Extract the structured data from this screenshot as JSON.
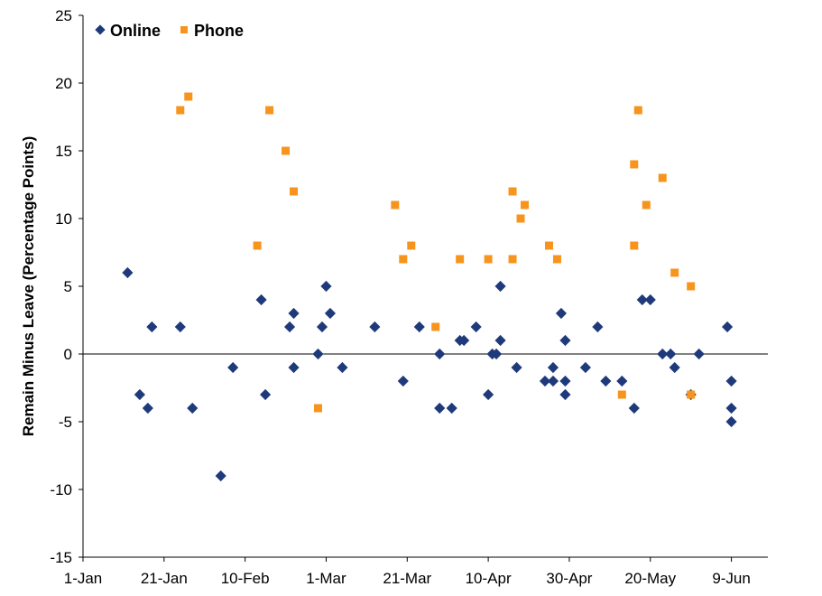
{
  "chart_data": {
    "type": "scatter",
    "ylabel": "Remain Minus Leave (Percentage Points)",
    "xlabel": "",
    "ylim": [
      -15,
      25
    ],
    "yticks": [
      -15,
      -10,
      -5,
      0,
      5,
      10,
      15,
      20,
      25
    ],
    "xlim": [
      "2016-01-01",
      "2016-06-18"
    ],
    "xticks": [
      {
        "date": "2016-01-01",
        "label": "1-Jan"
      },
      {
        "date": "2016-01-21",
        "label": "21-Jan"
      },
      {
        "date": "2016-02-10",
        "label": "10-Feb"
      },
      {
        "date": "2016-03-01",
        "label": "1-Mar"
      },
      {
        "date": "2016-03-21",
        "label": "21-Mar"
      },
      {
        "date": "2016-04-10",
        "label": "10-Apr"
      },
      {
        "date": "2016-04-30",
        "label": "30-Apr"
      },
      {
        "date": "2016-05-20",
        "label": "20-May"
      },
      {
        "date": "2016-06-09",
        "label": "9-Jun"
      }
    ],
    "grid": false,
    "legend_position": "top-left",
    "series": [
      {
        "name": "Online",
        "color": "#1F3A7A",
        "marker": "diamond",
        "points": [
          {
            "x": "2016-01-12",
            "y": 6
          },
          {
            "x": "2016-01-15",
            "y": -3
          },
          {
            "x": "2016-01-17",
            "y": -4
          },
          {
            "x": "2016-01-18",
            "y": 2
          },
          {
            "x": "2016-01-25",
            "y": 2
          },
          {
            "x": "2016-01-28",
            "y": -4
          },
          {
            "x": "2016-02-04",
            "y": -9
          },
          {
            "x": "2016-02-07",
            "y": -1
          },
          {
            "x": "2016-02-14",
            "y": 4
          },
          {
            "x": "2016-02-15",
            "y": -3
          },
          {
            "x": "2016-02-21",
            "y": 2
          },
          {
            "x": "2016-02-22",
            "y": 3
          },
          {
            "x": "2016-02-22",
            "y": -1
          },
          {
            "x": "2016-02-28",
            "y": 0
          },
          {
            "x": "2016-02-29",
            "y": 2
          },
          {
            "x": "2016-03-01",
            "y": 5
          },
          {
            "x": "2016-03-02",
            "y": 3
          },
          {
            "x": "2016-03-05",
            "y": -1
          },
          {
            "x": "2016-03-13",
            "y": 2
          },
          {
            "x": "2016-03-20",
            "y": -2
          },
          {
            "x": "2016-03-24",
            "y": 2
          },
          {
            "x": "2016-03-29",
            "y": 0
          },
          {
            "x": "2016-03-29",
            "y": -4
          },
          {
            "x": "2016-04-01",
            "y": -4
          },
          {
            "x": "2016-04-03",
            "y": 1
          },
          {
            "x": "2016-04-04",
            "y": 1
          },
          {
            "x": "2016-04-07",
            "y": 2
          },
          {
            "x": "2016-04-10",
            "y": -3
          },
          {
            "x": "2016-04-11",
            "y": 0
          },
          {
            "x": "2016-04-12",
            "y": 0
          },
          {
            "x": "2016-04-13",
            "y": 5
          },
          {
            "x": "2016-04-13",
            "y": 1
          },
          {
            "x": "2016-04-17",
            "y": -1
          },
          {
            "x": "2016-04-24",
            "y": -2
          },
          {
            "x": "2016-04-26",
            "y": -2
          },
          {
            "x": "2016-04-26",
            "y": -1
          },
          {
            "x": "2016-04-28",
            "y": 3
          },
          {
            "x": "2016-04-29",
            "y": 1
          },
          {
            "x": "2016-04-29",
            "y": -2
          },
          {
            "x": "2016-04-29",
            "y": -3
          },
          {
            "x": "2016-05-04",
            "y": -1
          },
          {
            "x": "2016-05-07",
            "y": 2
          },
          {
            "x": "2016-05-09",
            "y": -2
          },
          {
            "x": "2016-05-13",
            "y": -2
          },
          {
            "x": "2016-05-16",
            "y": -4
          },
          {
            "x": "2016-05-18",
            "y": 4
          },
          {
            "x": "2016-05-20",
            "y": 4
          },
          {
            "x": "2016-05-23",
            "y": 0
          },
          {
            "x": "2016-05-25",
            "y": 0
          },
          {
            "x": "2016-05-26",
            "y": -1
          },
          {
            "x": "2016-05-30",
            "y": -3
          },
          {
            "x": "2016-06-01",
            "y": 0
          },
          {
            "x": "2016-06-08",
            "y": 2
          },
          {
            "x": "2016-06-09",
            "y": -2
          },
          {
            "x": "2016-06-09",
            "y": -4
          },
          {
            "x": "2016-06-09",
            "y": -5
          }
        ]
      },
      {
        "name": "Phone",
        "color": "#F7941D",
        "marker": "square",
        "points": [
          {
            "x": "2016-01-25",
            "y": 18
          },
          {
            "x": "2016-01-27",
            "y": 19
          },
          {
            "x": "2016-02-13",
            "y": 8
          },
          {
            "x": "2016-02-16",
            "y": 18
          },
          {
            "x": "2016-02-20",
            "y": 15
          },
          {
            "x": "2016-02-22",
            "y": 12
          },
          {
            "x": "2016-02-28",
            "y": -4
          },
          {
            "x": "2016-03-18",
            "y": 11
          },
          {
            "x": "2016-03-20",
            "y": 7
          },
          {
            "x": "2016-03-22",
            "y": 8
          },
          {
            "x": "2016-03-28",
            "y": 2
          },
          {
            "x": "2016-04-03",
            "y": 7
          },
          {
            "x": "2016-04-10",
            "y": 7
          },
          {
            "x": "2016-04-16",
            "y": 12
          },
          {
            "x": "2016-04-16",
            "y": 7
          },
          {
            "x": "2016-04-18",
            "y": 10
          },
          {
            "x": "2016-04-19",
            "y": 11
          },
          {
            "x": "2016-04-25",
            "y": 8
          },
          {
            "x": "2016-04-27",
            "y": 7
          },
          {
            "x": "2016-05-13",
            "y": -3
          },
          {
            "x": "2016-05-16",
            "y": 14
          },
          {
            "x": "2016-05-16",
            "y": 8
          },
          {
            "x": "2016-05-17",
            "y": 18
          },
          {
            "x": "2016-05-19",
            "y": 11
          },
          {
            "x": "2016-05-23",
            "y": 13
          },
          {
            "x": "2016-05-26",
            "y": 6
          },
          {
            "x": "2016-05-30",
            "y": 5
          },
          {
            "x": "2016-05-30",
            "y": -3
          }
        ]
      }
    ]
  }
}
